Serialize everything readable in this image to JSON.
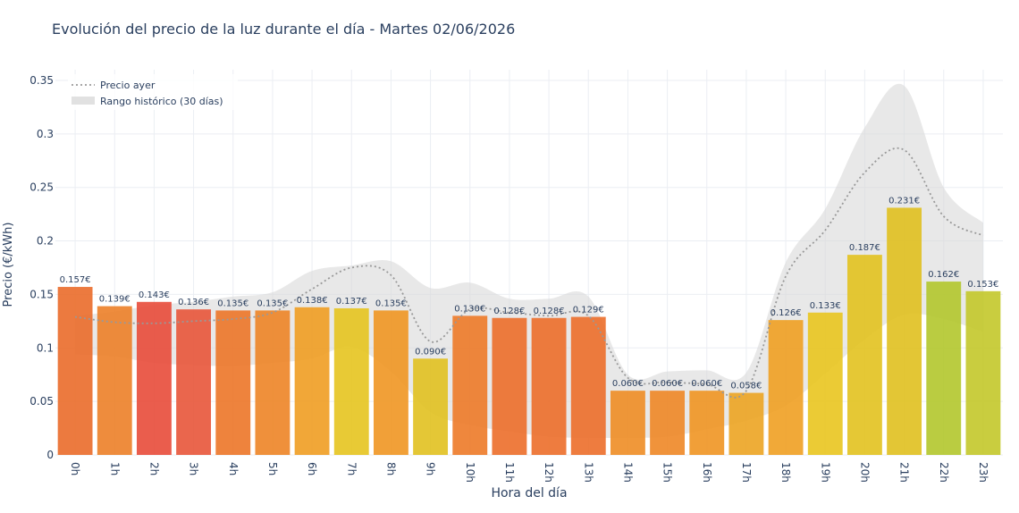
{
  "chart_data": {
    "type": "bar",
    "title": "Evolución del precio de la luz durante el día - Martes 02/06/2026",
    "xlabel": "Hora del día",
    "ylabel": "Precio (€/kWh)",
    "ylim": [
      0,
      0.36
    ],
    "yticks": [
      0,
      0.05,
      0.1,
      0.15,
      0.2,
      0.25,
      0.3,
      0.35
    ],
    "ytick_labels": [
      "0",
      "0.05",
      "0.1",
      "0.15",
      "0.2",
      "0.25",
      "0.3",
      "0.35"
    ],
    "grid": true,
    "legend_position": "top-left",
    "categories": [
      "0h",
      "1h",
      "2h",
      "3h",
      "4h",
      "5h",
      "6h",
      "7h",
      "8h",
      "9h",
      "10h",
      "11h",
      "12h",
      "13h",
      "14h",
      "15h",
      "16h",
      "17h",
      "18h",
      "19h",
      "20h",
      "21h",
      "22h",
      "23h"
    ],
    "series": [
      {
        "type": "bar",
        "values": [
          0.157,
          0.139,
          0.143,
          0.136,
          0.135,
          0.135,
          0.138,
          0.137,
          0.135,
          0.09,
          0.13,
          0.128,
          0.128,
          0.129,
          0.06,
          0.06,
          0.06,
          0.058,
          0.126,
          0.133,
          0.187,
          0.231,
          0.162,
          0.153
        ],
        "labels": [
          "0.157€",
          "0.139€",
          "0.143€",
          "0.136€",
          "0.135€",
          "0.135€",
          "0.138€",
          "0.137€",
          "0.135€",
          "0.090€",
          "0.130€",
          "0.128€",
          "0.128€",
          "0.129€",
          "0.060€",
          "0.060€",
          "0.060€",
          "0.058€",
          "0.126€",
          "0.133€",
          "0.187€",
          "0.231€",
          "0.162€",
          "0.153€"
        ],
        "colors": [
          "#ea6b2a",
          "#ec7f28",
          "#e84b3a",
          "#e8553a",
          "#ec7528",
          "#ed8426",
          "#ef9d22",
          "#e6c41f",
          "#ef9622",
          "#e1c120",
          "#ed7a28",
          "#ec6e2a",
          "#ec6e2a",
          "#ec6e2a",
          "#ee8d25",
          "#ee8726",
          "#ef9522",
          "#eca422",
          "#efa022",
          "#e9c51f",
          "#e2c21f",
          "#e0c01f",
          "#b2c62c",
          "#c3c82a"
        ]
      },
      {
        "name": "Precio ayer",
        "type": "line",
        "style": "dotted",
        "color": "#999999",
        "values": [
          0.129,
          0.124,
          0.123,
          0.125,
          0.127,
          0.133,
          0.155,
          0.175,
          0.168,
          0.106,
          0.136,
          0.133,
          0.13,
          0.13,
          0.072,
          0.068,
          0.066,
          0.06,
          0.167,
          0.21,
          0.264,
          0.285,
          0.223,
          0.205
        ]
      },
      {
        "name": "Rango histórico (30 días)",
        "type": "band",
        "color": "#d9d9d9",
        "lower": [
          0.094,
          0.092,
          0.086,
          0.084,
          0.083,
          0.086,
          0.09,
          0.101,
          0.078,
          0.04,
          0.028,
          0.022,
          0.017,
          0.016,
          0.016,
          0.017,
          0.024,
          0.032,
          0.046,
          0.076,
          0.108,
          0.131,
          0.127,
          0.115
        ],
        "upper": [
          0.13,
          0.134,
          0.14,
          0.143,
          0.148,
          0.152,
          0.172,
          0.177,
          0.181,
          0.156,
          0.161,
          0.146,
          0.146,
          0.148,
          0.075,
          0.078,
          0.079,
          0.077,
          0.18,
          0.23,
          0.306,
          0.345,
          0.25,
          0.217
        ]
      }
    ]
  }
}
